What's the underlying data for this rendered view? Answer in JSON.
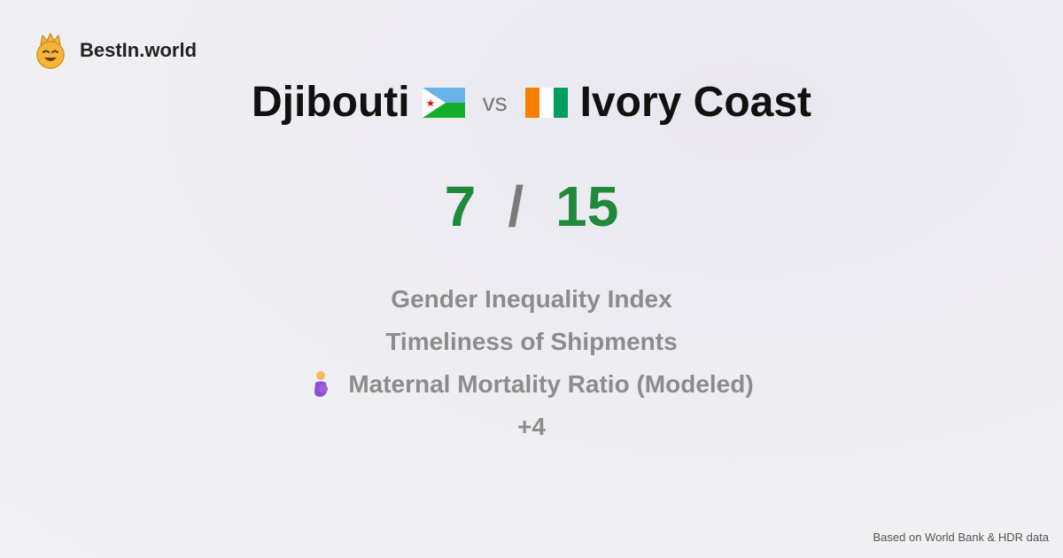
{
  "brand": {
    "name": "BestIn.world",
    "icon": "crown-smiley-icon"
  },
  "comparison": {
    "country_a": {
      "name": "Djibouti",
      "flag": "djibouti-flag-icon"
    },
    "vs_label": "vs",
    "country_b": {
      "name": "Ivory Coast",
      "flag": "ivory-coast-flag-icon"
    }
  },
  "score": {
    "a": "7",
    "separator": "/",
    "b": "15"
  },
  "metrics": [
    {
      "label": "Gender Inequality Index"
    },
    {
      "label": "Timeliness of Shipments"
    },
    {
      "label": "Maternal Mortality Ratio (Modeled)",
      "icon": "pregnant-woman-icon"
    },
    {
      "label": "+4"
    }
  ],
  "footer": {
    "text": "Based on World Bank & HDR data"
  },
  "colors": {
    "score": "#1e8a3a",
    "muted": "#8c8c8c"
  }
}
